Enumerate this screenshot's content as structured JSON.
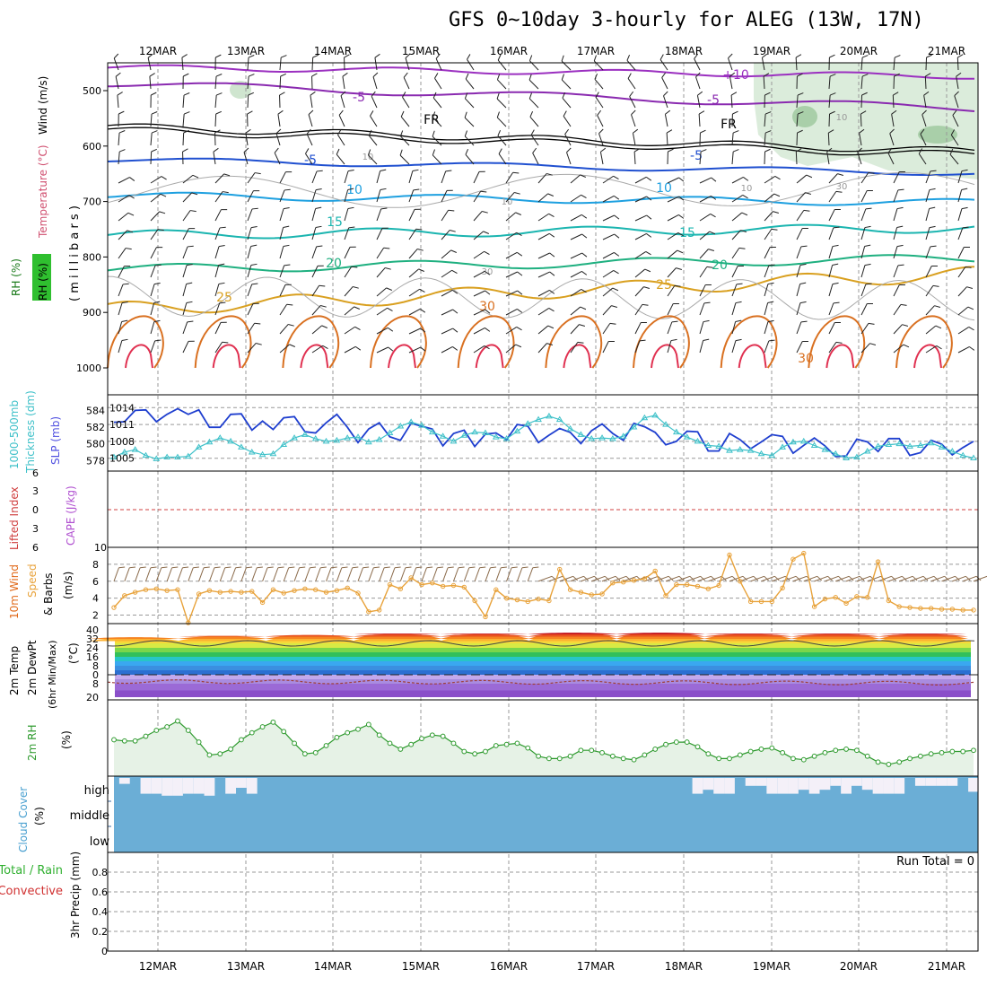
{
  "title": "GFS 0~10day 3-hourly for ALEG (13W, 17N)",
  "dates": [
    "12MAR",
    "13MAR",
    "14MAR",
    "15MAR",
    "16MAR",
    "17MAR",
    "18MAR",
    "19MAR",
    "20MAR",
    "21MAR"
  ],
  "colors": {
    "frame": "#000000",
    "grid": "#999999",
    "slp": "#1f3fcf",
    "thickness": "#3fc1c9",
    "wind10": "#e8a23a",
    "barbs": "#8a6a4a",
    "rh": "#2e9a2e",
    "cloud": "#6baed6",
    "cloud_clear": "#f4f0f8",
    "li": "#d04040",
    "cape": "#b050d0"
  },
  "panels": {
    "upper": {
      "label_rh": "RH (%)",
      "label_temp": "Temperature (°C)",
      "label_wind": "Wind (m/s)",
      "label_mb": "( m i l l i b a r s )",
      "y_ticks": [
        "500",
        "600",
        "700",
        "800",
        "900",
        "1000"
      ],
      "contours": [
        {
          "label": "+10",
          "color": "#9b30c0"
        },
        {
          "label": "-5",
          "color": "#8a2ab0"
        },
        {
          "label": "-5",
          "color": "#8a2ab0"
        },
        {
          "label": "FR",
          "color": "#000000"
        },
        {
          "label": "FR",
          "color": "#000000"
        },
        {
          "label": "-5",
          "color": "#2050d0"
        },
        {
          "label": "-5",
          "color": "#2050d0"
        },
        {
          "label": "10",
          "color": "#1ea0e0"
        },
        {
          "label": "10",
          "color": "#1ea0e0"
        },
        {
          "label": "15",
          "color": "#1bb5b0"
        },
        {
          "label": "15",
          "color": "#1bb5b0"
        },
        {
          "label": "20",
          "color": "#1fb080"
        },
        {
          "label": "20",
          "color": "#1fb080"
        },
        {
          "label": "25",
          "color": "#d9a020"
        },
        {
          "label": "25",
          "color": "#d9a020"
        },
        {
          "label": "30",
          "color": "#d97020"
        },
        {
          "label": "30",
          "color": "#d97020"
        },
        {
          "label": "10",
          "color": "#999999"
        },
        {
          "label": "10",
          "color": "#999999"
        },
        {
          "label": "10",
          "color": "#999999"
        },
        {
          "label": "10",
          "color": "#999999"
        },
        {
          "label": "30",
          "color": "#999999"
        },
        {
          "label": "30",
          "color": "#999999"
        }
      ]
    },
    "slp": {
      "label_thick": "1000-500mb",
      "label_thick2": "Thickness (dm)",
      "label_slp": "SLP (mb)",
      "left_ticks": [
        "584",
        "582",
        "580",
        "578"
      ],
      "right_ticks": [
        "1014",
        "1011",
        "1008",
        "1005"
      ]
    },
    "cape": {
      "label_li": "Lifted Index",
      "label_cape": "CAPE (J/kg)",
      "left_ticks": [
        "6",
        "3",
        "0",
        "3",
        "6"
      ],
      "right_ticks": [
        "10"
      ]
    },
    "wind10": {
      "label1": "10m Wind",
      "label2": "Speed",
      "label3": "& Barbs",
      "label_unit": "(m/s)",
      "ticks": [
        "8",
        "6",
        "4",
        "2"
      ]
    },
    "temp": {
      "label1": "2m Temp",
      "label2": "2m DewPt",
      "label3": "(6hr Min/Max)",
      "label_unit": "(°C)",
      "ticks": [
        "40",
        "32",
        "24",
        "16",
        "8",
        "0",
        "8",
        "20"
      ]
    },
    "rh2m": {
      "label1": "2m RH",
      "label_unit": "(%)"
    },
    "cloud": {
      "label1": "Cloud Cover",
      "label_unit": "(%)",
      "levels": [
        "high",
        "middle",
        "low"
      ]
    },
    "precip": {
      "label1": "Total / Rain",
      "label2": "Convective",
      "label3": "3hr Precip (mm)",
      "ticks": [
        "0.8",
        "0.6",
        "0.4",
        "0.2",
        "0"
      ],
      "run_total": "Run Total = 0"
    }
  },
  "chart_data": [
    {
      "type": "line",
      "title": "SLP (mb) and 1000-500mb Thickness (dm)",
      "x": "3-hourly steps 11MAR12Z to 21MAR",
      "series": [
        {
          "name": "SLP (mb)",
          "axis": "right",
          "ylim": [
            1004,
            1015
          ],
          "values": [
            1011.4,
            1011.5,
            1013.5,
            1013.6,
            1011.5,
            1012.8,
            1013.8,
            1012.8,
            1013.6,
            1010.5,
            1010.5,
            1012.8,
            1012.9,
            1010.0,
            1011.6,
            1010.1,
            1012.2,
            1012.4,
            1009.7,
            1009.5,
            1011.3,
            1012.8,
            1010.5,
            1007.8,
            1010.2,
            1011.3,
            1008.8,
            1008.2,
            1011.2,
            1010.7,
            1010.2,
            1007.2,
            1009.4,
            1010.0,
            1007.1,
            1009.3,
            1009.5,
            1008.3,
            1011.0,
            1010.7,
            1007.8,
            1009.1,
            1010.3,
            1009.6,
            1007.6,
            1009.9,
            1011.1,
            1009.4,
            1008.2,
            1011.2,
            1010.6,
            1009.6,
            1007.4,
            1008.0,
            1009.8,
            1009.7,
            1006.3,
            1006.3,
            1009.4,
            1008.3,
            1006.7,
            1007.9,
            1009.2,
            1008.9,
            1005.9,
            1007.3,
            1008.6,
            1007.2,
            1005.3,
            1005.4,
            1008.4,
            1007.9,
            1006.2,
            1008.5,
            1008.5,
            1005.5,
            1006.0,
            1008.2,
            1007.5,
            1005.6,
            1006.9,
            1008.0
          ]
        },
        {
          "name": "1000-500mb Thickness (dm)",
          "axis": "left",
          "ylim": [
            577.6,
            585
          ],
          "values": [
            578.4,
            579.0,
            579.3,
            578.6,
            578.2,
            578.4,
            578.4,
            578.5,
            579.6,
            580.2,
            580.7,
            580.3,
            579.6,
            579.0,
            578.7,
            578.8,
            579.9,
            580.7,
            581.1,
            580.6,
            580.3,
            580.4,
            580.7,
            580.8,
            580.2,
            580.5,
            581.3,
            582.1,
            582.6,
            582.2,
            581.4,
            580.9,
            580.3,
            581.0,
            581.4,
            581.3,
            580.8,
            580.6,
            581.5,
            582.4,
            582.9,
            583.3,
            582.9,
            581.8,
            581.1,
            580.6,
            580.7,
            580.6,
            580.9,
            582.0,
            583.1,
            583.4,
            582.3,
            581.4,
            580.8,
            580.3,
            579.8,
            579.7,
            579.2,
            579.3,
            579.2,
            578.8,
            578.6,
            579.6,
            580.2,
            580.3,
            579.8,
            579.3,
            578.8,
            578.3,
            578.4,
            579.1,
            579.7,
            579.9,
            580.0,
            579.7,
            579.8,
            580.1,
            579.6,
            579.1,
            578.6,
            578.3
          ]
        }
      ]
    },
    {
      "type": "line",
      "title": "10m Wind Speed (m/s)",
      "ylim": [
        1,
        10
      ],
      "series": [
        {
          "name": "10m Wind Speed",
          "values": [
            2.9,
            4.3,
            4.7,
            5.0,
            5.1,
            4.9,
            5.0,
            1.1,
            4.5,
            4.9,
            4.7,
            4.8,
            4.7,
            4.8,
            3.5,
            5.0,
            4.6,
            4.9,
            5.1,
            5.0,
            4.7,
            4.9,
            5.2,
            4.6,
            2.4,
            2.6,
            5.6,
            5.1,
            6.4,
            5.6,
            5.8,
            5.4,
            5.5,
            5.3,
            3.7,
            1.8,
            5.0,
            4.0,
            3.8,
            3.6,
            3.9,
            3.7,
            7.4,
            5.0,
            4.7,
            4.4,
            4.5,
            5.8,
            5.9,
            6.1,
            6.3,
            7.2,
            4.3,
            5.6,
            5.6,
            5.4,
            5.1,
            5.5,
            9.1,
            6.0,
            3.6,
            3.6,
            3.6,
            5.2,
            8.6,
            9.3,
            3.0,
            3.9,
            4.1,
            3.4,
            4.2,
            4.1,
            8.3,
            3.7,
            3.0,
            2.9,
            2.8,
            2.8,
            2.7,
            2.7,
            2.6,
            2.6
          ]
        }
      ]
    },
    {
      "type": "area",
      "title": "2m Temp (°C)",
      "ylim": [
        -20,
        40
      ],
      "series": [
        {
          "name": "2m Temperature daily max",
          "values": [
            34,
            35,
            36,
            37,
            37,
            38,
            38,
            37
          ]
        },
        {
          "name": "2m Temperature daily min",
          "values": [
            27,
            26,
            26,
            27,
            27,
            27,
            28,
            27,
            28,
            28
          ]
        }
      ]
    },
    {
      "type": "line",
      "title": "2m RH (%)",
      "ylim": [
        5,
        70
      ],
      "series": [
        {
          "name": "2m RH",
          "values": [
            36,
            35,
            35,
            39,
            44,
            47,
            52,
            44,
            34,
            23,
            24,
            28,
            36,
            42,
            47,
            51,
            43,
            33,
            24,
            25,
            31,
            38,
            42,
            45,
            49,
            40,
            33,
            28,
            32,
            37,
            40,
            39,
            33,
            26,
            24,
            26,
            31,
            32,
            33,
            29,
            22,
            20,
            20,
            22,
            27,
            27,
            25,
            22,
            20,
            19,
            23,
            28,
            32,
            34,
            34,
            30,
            24,
            20,
            20,
            23,
            26,
            28,
            29,
            25,
            20,
            19,
            22,
            25,
            27,
            28,
            27,
            22,
            17,
            15,
            17,
            20,
            22,
            24,
            25,
            26,
            26,
            27
          ]
        }
      ]
    },
    {
      "type": "bar",
      "title": "Cloud Cover high (%)",
      "series": [
        {
          "name": "high cloud cover",
          "values": [
            100,
            70,
            100,
            20,
            20,
            10,
            10,
            20,
            20,
            10,
            100,
            20,
            50,
            20,
            100,
            100,
            100,
            100,
            100,
            100,
            100,
            100,
            100,
            100,
            100,
            100,
            100,
            100,
            100,
            100,
            100,
            100,
            100,
            100,
            100,
            100,
            100,
            100,
            100,
            100,
            100,
            100,
            100,
            100,
            100,
            100,
            100,
            100,
            100,
            100,
            100,
            100,
            100,
            100,
            100,
            20,
            40,
            20,
            20,
            100,
            60,
            60,
            20,
            20,
            20,
            40,
            20,
            40,
            60,
            20,
            60,
            40,
            20,
            20,
            20,
            100,
            60,
            60,
            60,
            60,
            100,
            30
          ]
        }
      ]
    }
  ]
}
